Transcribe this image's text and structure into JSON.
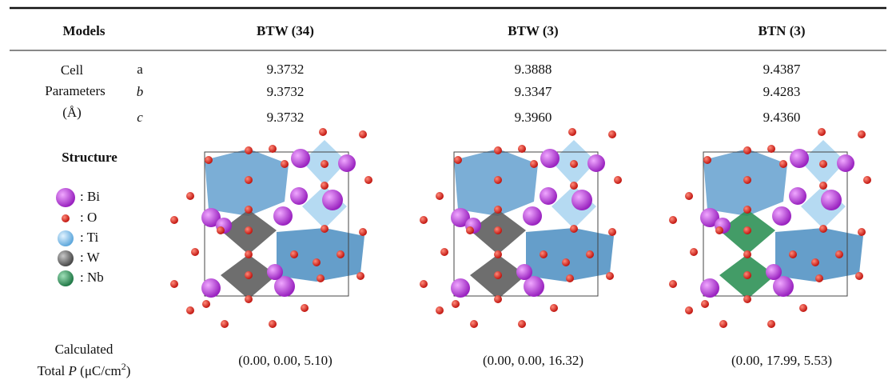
{
  "header": {
    "columns": [
      "Models",
      "BTW (34)",
      "BTW (3)",
      "BTN (3)"
    ]
  },
  "cell_parameters": {
    "label": [
      "Cell",
      "Parameters",
      "(Å)"
    ],
    "rows": [
      {
        "axis": "a",
        "values": [
          "9.3732",
          "9.3888",
          "9.4387"
        ]
      },
      {
        "axis": "b",
        "values": [
          "9.3732",
          "9.3347",
          "9.4283"
        ]
      },
      {
        "axis": "c",
        "values": [
          "9.3732",
          "9.3960",
          "9.4360"
        ]
      }
    ]
  },
  "structure": {
    "label": "Structure",
    "legend": [
      ": Bi",
      ": O",
      ": Ti",
      ": W",
      ": Nb"
    ]
  },
  "polarization": {
    "label_line1": "Calculated",
    "label_line2": [
      "Total ",
      "P",
      " (μC/cm",
      "2",
      ")"
    ],
    "values": [
      "(0.00, 0.00, 5.10)",
      "(0.00, 0.00, 16.32)",
      "(0.00, 17.99, 5.53)"
    ]
  }
}
